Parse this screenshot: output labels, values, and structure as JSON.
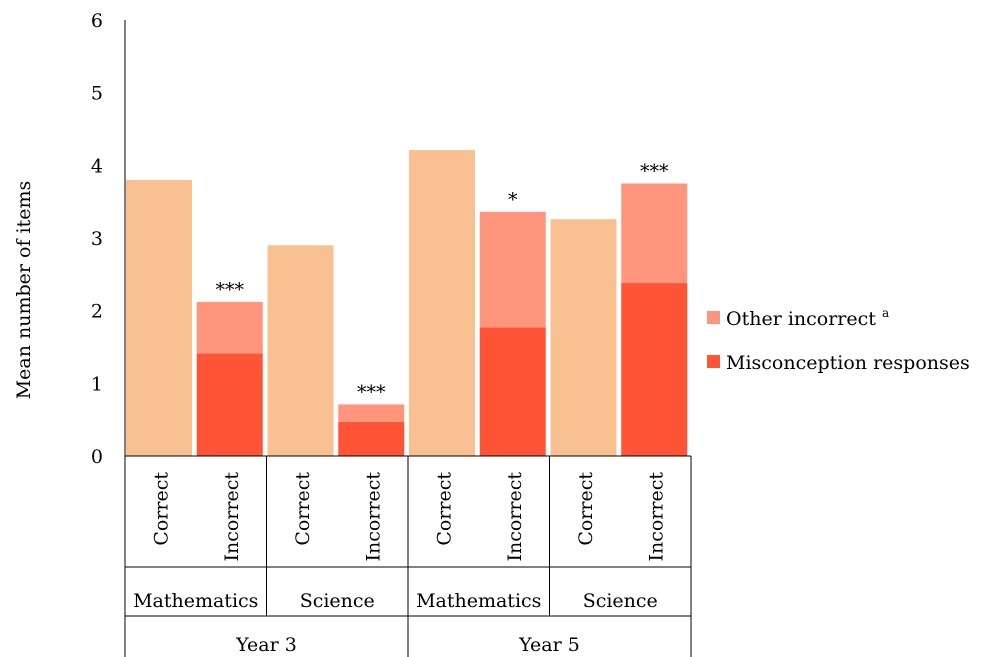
{
  "chart_data": {
    "type": "bar",
    "stacked": true,
    "ylabel": "Mean number of items",
    "ylim": [
      0,
      6
    ],
    "yticks": [
      0,
      1,
      2,
      3,
      4,
      5,
      6
    ],
    "grid": false,
    "legend_position": "right",
    "categories": [
      {
        "label": "Correct",
        "group": "Mathematics",
        "year": "Year 3"
      },
      {
        "label": "Incorrect",
        "group": "Mathematics",
        "year": "Year 3"
      },
      {
        "label": "Correct",
        "group": "Science",
        "year": "Year 3"
      },
      {
        "label": "Incorrect",
        "group": "Science",
        "year": "Year 3"
      },
      {
        "label": "Correct",
        "group": "Mathematics",
        "year": "Year 5"
      },
      {
        "label": "Incorrect",
        "group": "Mathematics",
        "year": "Year 5"
      },
      {
        "label": "Correct",
        "group": "Science",
        "year": "Year 5"
      },
      {
        "label": "Incorrect",
        "group": "Science",
        "year": "Year 5"
      }
    ],
    "groups": [
      "Mathematics",
      "Science",
      "Mathematics",
      "Science"
    ],
    "years": [
      "Year 3",
      "Year 5"
    ],
    "correct_values": [
      3.8,
      null,
      2.9,
      null,
      4.21,
      null,
      3.26,
      null
    ],
    "series": [
      {
        "name": "Misconception responses",
        "color": "#ff5436",
        "values": [
          null,
          1.41,
          null,
          0.47,
          null,
          1.77,
          null,
          2.38
        ]
      },
      {
        "name": "Other incorrect",
        "name_superscript": "a",
        "color": "#ff957d",
        "values": [
          null,
          0.71,
          null,
          0.24,
          null,
          1.59,
          null,
          1.37
        ]
      }
    ],
    "correct_color": "#f9c191",
    "annotations": [
      "",
      "***",
      "",
      "***",
      "",
      "*",
      "",
      "***"
    ]
  }
}
